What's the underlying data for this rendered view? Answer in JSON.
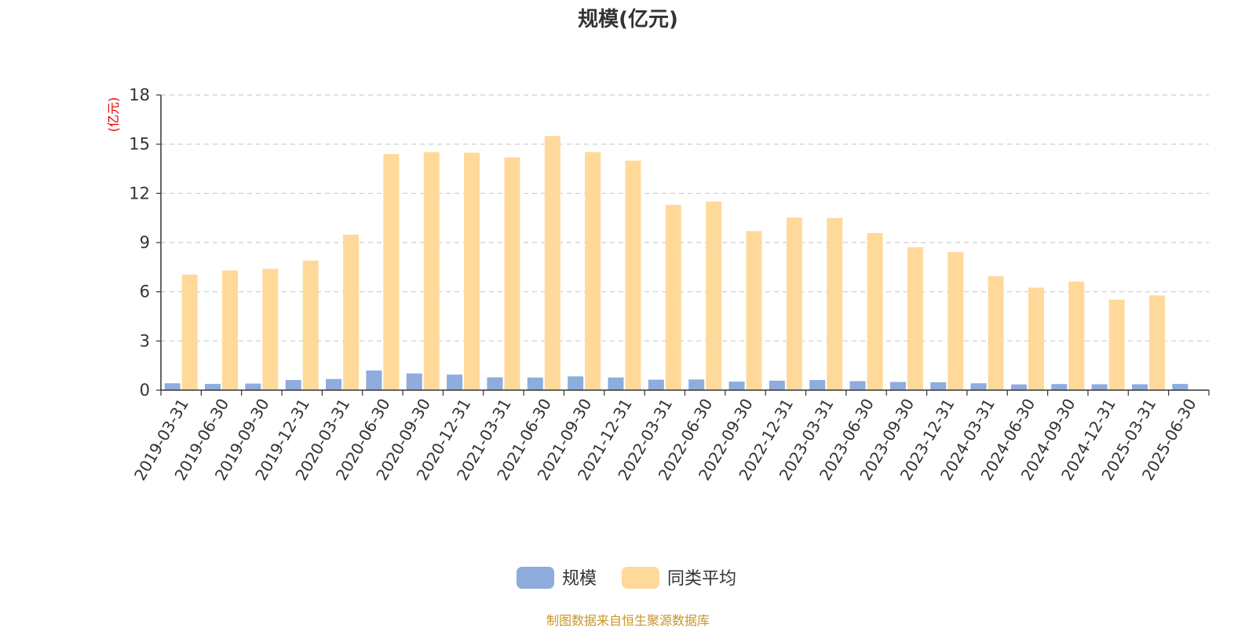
{
  "chart_data": {
    "type": "bar",
    "title": "规模(亿元)",
    "ylabel": "(亿元)",
    "xlabel": "",
    "ylim": [
      0,
      18
    ],
    "yticks": [
      0,
      3,
      6,
      9,
      12,
      15,
      18
    ],
    "grid": true,
    "legend_position": "bottom-center",
    "categories": [
      "2019-03-31",
      "2019-06-30",
      "2019-09-30",
      "2019-12-31",
      "2020-03-31",
      "2020-06-30",
      "2020-09-30",
      "2020-12-31",
      "2021-03-31",
      "2021-06-30",
      "2021-09-30",
      "2021-12-31",
      "2022-03-31",
      "2022-06-30",
      "2022-09-30",
      "2022-12-31",
      "2023-03-31",
      "2023-06-30",
      "2023-09-30",
      "2023-12-31",
      "2024-03-31",
      "2024-06-30",
      "2024-09-30",
      "2024-12-31",
      "2025-03-31",
      "2025-06-30"
    ],
    "series": [
      {
        "name": "规模",
        "color": "#8eacdc",
        "values": [
          0.42,
          0.38,
          0.4,
          0.62,
          0.68,
          1.2,
          1.02,
          0.95,
          0.78,
          0.77,
          0.84,
          0.77,
          0.64,
          0.65,
          0.52,
          0.58,
          0.62,
          0.55,
          0.5,
          0.48,
          0.42,
          0.35,
          0.37,
          0.36,
          0.36,
          0.38
        ]
      },
      {
        "name": "同类平均",
        "color": "#ffd99a",
        "values": [
          7.05,
          7.3,
          7.4,
          7.9,
          9.48,
          14.4,
          14.52,
          14.48,
          14.2,
          15.5,
          14.52,
          14.0,
          11.3,
          11.5,
          9.7,
          10.52,
          10.5,
          9.58,
          8.72,
          8.42,
          6.95,
          6.25,
          6.62,
          5.52,
          5.78,
          null
        ]
      }
    ]
  },
  "colors": {
    "axis": "#333333",
    "grid": "#cccccc",
    "unit_label": "#e00000",
    "source": "#c8962a"
  },
  "source_text": "制图数据来自恒生聚源数据库"
}
